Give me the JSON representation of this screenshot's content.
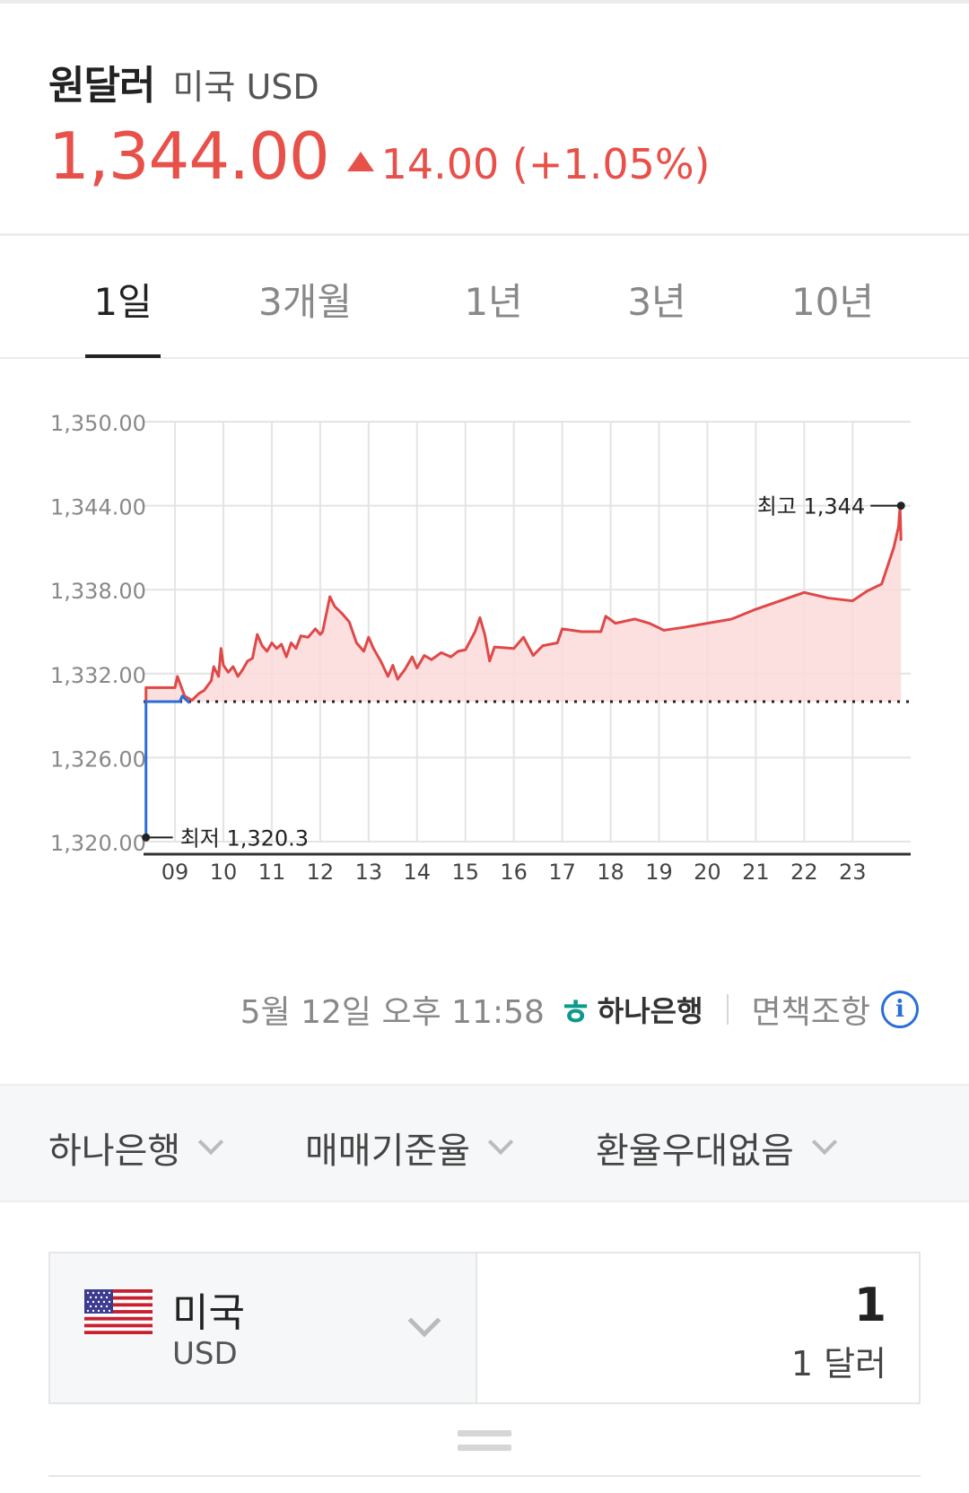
{
  "header": {
    "title": "원달러",
    "subtitle": "미국 USD",
    "price": "1,344.00",
    "change": "14.00 (+1.05%)",
    "change_direction": "up",
    "accent_color": "#e8504a"
  },
  "tabs": [
    {
      "label": "1일",
      "active": true
    },
    {
      "label": "3개월",
      "active": false
    },
    {
      "label": "1년",
      "active": false
    },
    {
      "label": "3년",
      "active": false
    },
    {
      "label": "10년",
      "active": false
    }
  ],
  "chart_data": {
    "type": "line",
    "ylim": [
      1320,
      1350
    ],
    "yticks": [
      "1,350.00",
      "1,344.00",
      "1,338.00",
      "1,332.00",
      "1,326.00",
      "1,320.00"
    ],
    "ytick_values": [
      1350,
      1344,
      1338,
      1332,
      1326,
      1320
    ],
    "xticks": [
      "09",
      "10",
      "11",
      "12",
      "13",
      "14",
      "15",
      "16",
      "17",
      "18",
      "19",
      "20",
      "21",
      "22",
      "23"
    ],
    "xlim": [
      8.35,
      24.2
    ],
    "reference_value": 1330,
    "annotations": {
      "high": "최고 1,344",
      "low": "최저 1,320.3"
    },
    "series": [
      {
        "color": "#e04848",
        "x": [
          8.4,
          8.4,
          9.0,
          9.05,
          9.2,
          9.35,
          9.5,
          9.6,
          9.75,
          9.8,
          9.9,
          9.95,
          10.0,
          10.1,
          10.2,
          10.3,
          10.4,
          10.5,
          10.6,
          10.7,
          10.8,
          10.9,
          11.0,
          11.1,
          11.2,
          11.3,
          11.4,
          11.5,
          11.6,
          11.75,
          11.9,
          12.0,
          12.05,
          12.2,
          12.3,
          12.45,
          12.6,
          12.75,
          12.9,
          13.0,
          13.1,
          13.25,
          13.4,
          13.5,
          13.6,
          13.75,
          13.9,
          14.0,
          14.15,
          14.3,
          14.5,
          14.7,
          14.85,
          15.0,
          15.2,
          15.3,
          15.4,
          15.5,
          15.6,
          16.0,
          16.2,
          16.4,
          16.6,
          16.9,
          17.0,
          17.4,
          17.8,
          17.9,
          18.1,
          18.5,
          18.8,
          19.1,
          19.5,
          20.0,
          20.5,
          21.0,
          21.5,
          22.0,
          22.5,
          23.0,
          23.3,
          23.6,
          23.85,
          23.95,
          23.98,
          24.0
        ],
        "y": [
          1330,
          1331,
          1331,
          1331.8,
          1330.4,
          1330.1,
          1330.6,
          1330.8,
          1331.5,
          1332.5,
          1331.8,
          1333.8,
          1332.6,
          1332.1,
          1332.5,
          1331.8,
          1332.3,
          1332.9,
          1333.1,
          1334.8,
          1334.0,
          1333.6,
          1334.2,
          1333.8,
          1334.1,
          1333.2,
          1334.2,
          1333.8,
          1334.7,
          1334.6,
          1335.2,
          1334.8,
          1335.0,
          1337.5,
          1336.8,
          1336.3,
          1335.7,
          1334.2,
          1333.6,
          1334.6,
          1333.8,
          1332.9,
          1331.8,
          1332.6,
          1331.6,
          1332.3,
          1333.2,
          1332.4,
          1333.3,
          1333.0,
          1333.5,
          1333.2,
          1333.6,
          1333.7,
          1335.0,
          1336.0,
          1334.8,
          1332.9,
          1333.9,
          1333.8,
          1334.6,
          1333.3,
          1334.0,
          1334.2,
          1335.2,
          1335.0,
          1335.0,
          1336.1,
          1335.6,
          1335.9,
          1335.6,
          1335.1,
          1335.3,
          1335.6,
          1335.9,
          1336.6,
          1337.2,
          1337.8,
          1337.4,
          1337.2,
          1337.9,
          1338.4,
          1341.0,
          1342.5,
          1344.0,
          1341.5
        ]
      },
      {
        "color": "#2a6fd6",
        "x": [
          8.4,
          8.4,
          9.1,
          9.15,
          9.3
        ],
        "y": [
          1320.3,
          1330.0,
          1330.0,
          1330.4,
          1329.9
        ]
      }
    ],
    "grid": true
  },
  "source": {
    "timestamp": "5월 12일 오후 11:58",
    "bank": "하나은행",
    "disclaimer": "면책조항"
  },
  "filters": [
    {
      "label": "하나은행"
    },
    {
      "label": "매매기준율"
    },
    {
      "label": "환율우대없음"
    }
  ],
  "converter": {
    "country": "미국",
    "code": "USD",
    "amount": "1",
    "amount_text": "1 달러"
  },
  "icons": {
    "change": "triangle-up-icon",
    "info": "info-icon",
    "dropdown": "chevron-down-icon",
    "swap": "equals-icon",
    "flag": "us-flag-icon"
  }
}
